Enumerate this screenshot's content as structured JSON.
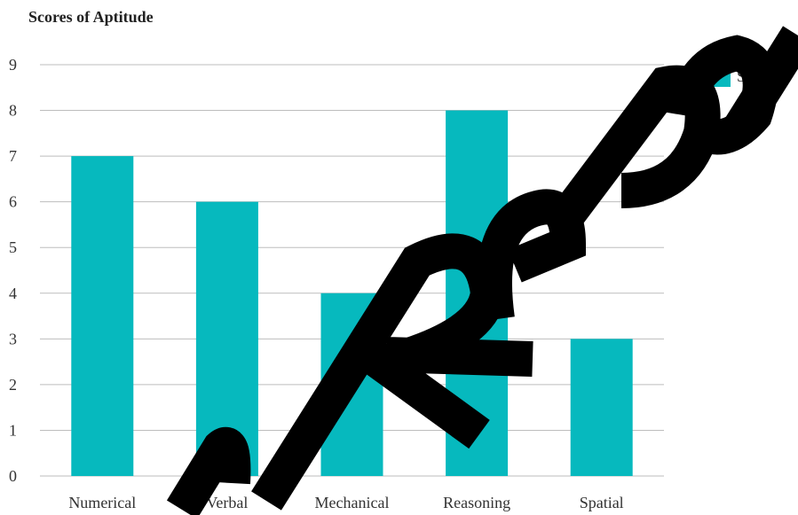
{
  "chart_data": {
    "type": "bar",
    "title": "Scores of Aptitude",
    "categories": [
      "Numerical",
      "Verbal",
      "Mechanical",
      "Reasoning",
      "Spatial"
    ],
    "series": [
      {
        "name": "Scores",
        "values": [
          7,
          6,
          4,
          8,
          3
        ],
        "color": "#06b9be"
      }
    ],
    "xlabel": "",
    "ylabel": "",
    "ylim": [
      0,
      9
    ],
    "yticks": [
      0,
      1,
      2,
      3,
      4,
      5,
      6,
      7,
      8,
      9
    ],
    "grid": true,
    "legend_position": "top-right"
  },
  "colors": {
    "bar": "#06b9be",
    "grid": "#bdbdbd",
    "watermark": "#000000"
  }
}
